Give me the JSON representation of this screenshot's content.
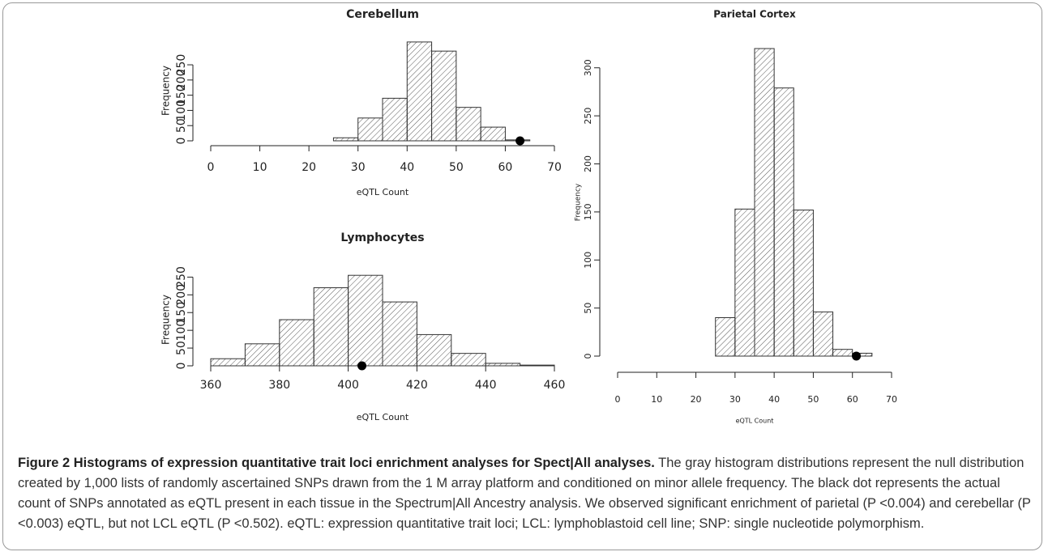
{
  "chart_data": [
    {
      "type": "histogram",
      "title": "Cerebellum",
      "xlabel": "eQTL Count",
      "ylabel": "Frequency",
      "bins": [
        25,
        30,
        35,
        40,
        45,
        50,
        55,
        60,
        65
      ],
      "values": [
        10,
        75,
        140,
        325,
        295,
        110,
        45,
        3
      ],
      "xlim": [
        0,
        70
      ],
      "xticks": [
        0,
        10,
        20,
        30,
        40,
        50,
        60,
        70
      ],
      "ylim": [
        0,
        330
      ],
      "yticks": [
        0,
        50,
        100,
        150,
        200,
        250
      ],
      "marker": {
        "x": 63,
        "y": 0
      },
      "color": "#333333"
    },
    {
      "type": "histogram",
      "title": "Lymphocytes",
      "xlabel": "eQTL Count",
      "ylabel": "Frequency",
      "bins": [
        360,
        370,
        380,
        390,
        400,
        410,
        420,
        430,
        440,
        450,
        460
      ],
      "values": [
        20,
        62,
        130,
        220,
        255,
        180,
        88,
        35,
        7,
        2
      ],
      "xlim": [
        360,
        460
      ],
      "xticks": [
        360,
        380,
        400,
        420,
        440,
        460
      ],
      "ylim": [
        0,
        260
      ],
      "yticks": [
        0,
        50,
        100,
        150,
        200,
        250
      ],
      "marker": {
        "x": 404,
        "y": 0
      },
      "color": "#333333"
    },
    {
      "type": "histogram",
      "title": "Parietal Cortex",
      "xlabel": "eQTL Count",
      "ylabel": "Frequency",
      "bins": [
        25,
        30,
        35,
        40,
        45,
        50,
        55,
        60,
        65
      ],
      "values": [
        40,
        153,
        320,
        279,
        152,
        46,
        7,
        3
      ],
      "xlim": [
        0,
        70
      ],
      "xticks": [
        0,
        10,
        20,
        30,
        40,
        50,
        60,
        70
      ],
      "ylim": [
        0,
        320
      ],
      "yticks": [
        0,
        50,
        100,
        150,
        200,
        250,
        300
      ],
      "marker": {
        "x": 61,
        "y": 0
      },
      "color": "#333333"
    }
  ],
  "caption": {
    "title": "Figure 2 Histograms of expression quantitative trait loci enrichment analyses for Spect|All analyses.",
    "body": "The gray histogram distributions represent the null distribution created by 1,000 lists of randomly ascertained SNPs drawn from the 1 M array platform and conditioned on minor allele frequency. The black dot represents the actual count of SNPs annotated as eQTL present in each tissue in the Spectrum|All Ancestry analysis. We observed significant enrichment of parietal (P <0.004) and cerebellar (P <0.003) eQTL, but not LCL eQTL (P <0.502). eQTL: expression quantitative trait loci; LCL: lymphoblastoid cell line; SNP: single nucleotide polymorphism."
  }
}
